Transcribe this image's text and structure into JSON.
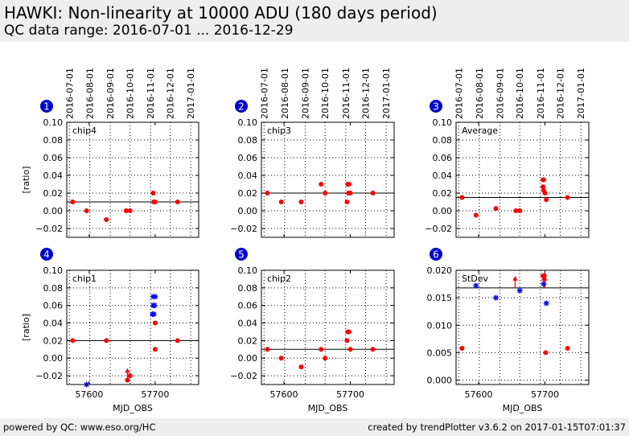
{
  "header": {
    "title": "HAWKI: Non-linearity at 10000 ADU (180 days period)",
    "subtitle": "QC data range: 2016-07-01 ... 2016-12-29"
  },
  "footer": {
    "left": "powered by QC: www.eso.org/HC",
    "right": "created by trendPlotter v3.6.2 on 2017-01-15T07:01:37"
  },
  "colors": {
    "points": "#ff0000",
    "outliers": "#0000ff",
    "badge": "#0000cc",
    "reference": "#000000"
  },
  "chart_data": [
    {
      "type": "scatter",
      "number": "1",
      "label": "chip4",
      "xlabel": "",
      "ylabel": "[ratio]",
      "xlim": [
        57566,
        57766
      ],
      "ylim": [
        -0.03,
        0.1
      ],
      "x_ticks": [
        57600,
        57700
      ],
      "x_tick_labels": [
        "",
        ""
      ],
      "y_ticks": [
        -0.02,
        0.0,
        0.02,
        0.04,
        0.06,
        0.08,
        0.1
      ],
      "y_tick_labels": [
        "−0.02",
        "0.00",
        "0.02",
        "0.04",
        "0.06",
        "0.08",
        "0.10"
      ],
      "date_ticks": [
        "2016-07-01",
        "2016-08-01",
        "2016-09-01",
        "2016-10-01",
        "2016-11-01",
        "2016-12-01",
        "2017-01-01"
      ],
      "date_tick_mjd": [
        57570,
        57601,
        57632,
        57662,
        57693,
        57723,
        57754
      ],
      "reference_line": 0.01,
      "points": [
        {
          "x": 57575,
          "y": 0.01
        },
        {
          "x": 57596,
          "y": 0.0
        },
        {
          "x": 57626,
          "y": -0.01
        },
        {
          "x": 57656,
          "y": 0.0
        },
        {
          "x": 57662,
          "y": 0.0
        },
        {
          "x": 57697,
          "y": 0.02
        },
        {
          "x": 57698,
          "y": 0.01
        },
        {
          "x": 57700,
          "y": 0.01
        },
        {
          "x": 57734,
          "y": 0.01
        }
      ],
      "outliers": [],
      "arrows": []
    },
    {
      "type": "scatter",
      "number": "2",
      "label": "chip3",
      "xlabel": "",
      "ylabel": "",
      "xlim": [
        57566,
        57766
      ],
      "ylim": [
        -0.03,
        0.1
      ],
      "x_ticks": [
        57600,
        57700
      ],
      "x_tick_labels": [
        "",
        ""
      ],
      "y_ticks": [
        -0.02,
        0.0,
        0.02,
        0.04,
        0.06,
        0.08,
        0.1
      ],
      "y_tick_labels": [
        "−0.02",
        "0.00",
        "0.02",
        "0.04",
        "0.06",
        "0.08",
        "0.10"
      ],
      "date_ticks": [
        "2016-07-01",
        "2016-08-01",
        "2016-09-01",
        "2016-10-01",
        "2016-11-01",
        "2016-12-01",
        "2017-01-01"
      ],
      "date_tick_mjd": [
        57570,
        57601,
        57632,
        57662,
        57693,
        57723,
        57754
      ],
      "reference_line": 0.02,
      "points": [
        {
          "x": 57575,
          "y": 0.02
        },
        {
          "x": 57596,
          "y": 0.01
        },
        {
          "x": 57626,
          "y": 0.01
        },
        {
          "x": 57656,
          "y": 0.03
        },
        {
          "x": 57662,
          "y": 0.02
        },
        {
          "x": 57695,
          "y": 0.01
        },
        {
          "x": 57696,
          "y": 0.03
        },
        {
          "x": 57698,
          "y": 0.03
        },
        {
          "x": 57697,
          "y": 0.02
        },
        {
          "x": 57700,
          "y": 0.02
        },
        {
          "x": 57734,
          "y": 0.02
        }
      ],
      "outliers": [],
      "arrows": []
    },
    {
      "type": "scatter",
      "number": "3",
      "label": "Average",
      "xlabel": "",
      "ylabel": "",
      "xlim": [
        57566,
        57766
      ],
      "ylim": [
        -0.03,
        0.1
      ],
      "x_ticks": [
        57600,
        57700
      ],
      "x_tick_labels": [
        "",
        ""
      ],
      "y_ticks": [
        -0.02,
        0.0,
        0.02,
        0.04,
        0.06,
        0.08,
        0.1
      ],
      "y_tick_labels": [
        "−0.02",
        "0.00",
        "0.02",
        "0.04",
        "0.06",
        "0.08",
        "0.10"
      ],
      "date_ticks": [
        "2016-07-01",
        "2016-08-01",
        "2016-09-01",
        "2016-10-01",
        "2016-11-01",
        "2016-12-01",
        "2017-01-01"
      ],
      "date_tick_mjd": [
        57570,
        57601,
        57632,
        57662,
        57693,
        57723,
        57754
      ],
      "reference_line": 0.015,
      "points": [
        {
          "x": 57575,
          "y": 0.015
        },
        {
          "x": 57596,
          "y": -0.005
        },
        {
          "x": 57626,
          "y": 0.0025
        },
        {
          "x": 57656,
          "y": 0.0
        },
        {
          "x": 57662,
          "y": 0.0
        },
        {
          "x": 57697,
          "y": 0.035
        },
        {
          "x": 57698,
          "y": 0.035
        },
        {
          "x": 57697,
          "y": 0.027
        },
        {
          "x": 57698,
          "y": 0.023
        },
        {
          "x": 57700,
          "y": 0.02
        },
        {
          "x": 57702,
          "y": 0.0125
        },
        {
          "x": 57734,
          "y": 0.015
        }
      ],
      "outliers": [],
      "arrows": []
    },
    {
      "type": "scatter",
      "number": "4",
      "label": "chip1",
      "xlabel": "MJD_OBS",
      "ylabel": "[ratio]",
      "xlim": [
        57566,
        57766
      ],
      "ylim": [
        -0.03,
        0.1
      ],
      "x_ticks": [
        57600,
        57700
      ],
      "x_tick_labels": [
        "57600",
        "57700"
      ],
      "y_ticks": [
        -0.02,
        0.0,
        0.02,
        0.04,
        0.06,
        0.08,
        0.1
      ],
      "y_tick_labels": [
        "−0.02",
        "0.00",
        "0.02",
        "0.04",
        "0.06",
        "0.08",
        "0.10"
      ],
      "date_ticks": [],
      "date_tick_mjd": [],
      "reference_line": 0.02,
      "points": [
        {
          "x": 57575,
          "y": 0.02
        },
        {
          "x": 57626,
          "y": 0.02
        },
        {
          "x": 57658,
          "y": -0.025
        },
        {
          "x": 57662,
          "y": -0.02
        },
        {
          "x": 57700,
          "y": 0.04
        },
        {
          "x": 57700,
          "y": 0.01
        },
        {
          "x": 57734,
          "y": 0.02
        }
      ],
      "outliers": [
        {
          "x": 57596,
          "y": -0.03
        },
        {
          "x": 57697,
          "y": 0.07
        },
        {
          "x": 57700,
          "y": 0.07
        },
        {
          "x": 57697,
          "y": 0.06
        },
        {
          "x": 57699,
          "y": 0.06
        },
        {
          "x": 57696,
          "y": 0.05
        },
        {
          "x": 57698,
          "y": 0.05
        }
      ],
      "arrows": [
        {
          "x": 57658,
          "y": -0.025,
          "dir": "up"
        }
      ]
    },
    {
      "type": "scatter",
      "number": "5",
      "label": "chip2",
      "xlabel": "MJD_OBS",
      "ylabel": "",
      "xlim": [
        57566,
        57766
      ],
      "ylim": [
        -0.03,
        0.1
      ],
      "x_ticks": [
        57600,
        57700
      ],
      "x_tick_labels": [
        "57600",
        "57700"
      ],
      "y_ticks": [
        -0.02,
        0.0,
        0.02,
        0.04,
        0.06,
        0.08,
        0.1
      ],
      "y_tick_labels": [
        "−0.02",
        "0.00",
        "0.02",
        "0.04",
        "0.06",
        "0.08",
        "0.10"
      ],
      "date_ticks": [],
      "date_tick_mjd": [],
      "reference_line": 0.01,
      "points": [
        {
          "x": 57575,
          "y": 0.01
        },
        {
          "x": 57596,
          "y": 0.0
        },
        {
          "x": 57626,
          "y": -0.01
        },
        {
          "x": 57656,
          "y": 0.01
        },
        {
          "x": 57662,
          "y": 0.0
        },
        {
          "x": 57695,
          "y": 0.02
        },
        {
          "x": 57696,
          "y": 0.03
        },
        {
          "x": 57698,
          "y": 0.03
        },
        {
          "x": 57700,
          "y": 0.01
        },
        {
          "x": 57734,
          "y": 0.01
        }
      ],
      "outliers": [],
      "arrows": []
    },
    {
      "type": "scatter",
      "number": "6",
      "label": "StDev",
      "xlabel": "MJD_OBS",
      "ylabel": "",
      "xlim": [
        57566,
        57766
      ],
      "ylim": [
        -0.0008,
        0.02
      ],
      "x_ticks": [
        57600,
        57700
      ],
      "x_tick_labels": [
        "57600",
        "57700"
      ],
      "y_ticks": [
        0.0,
        0.005,
        0.01,
        0.015,
        0.02
      ],
      "y_tick_labels": [
        "0.000",
        "0.005",
        "0.010",
        "0.015",
        "0.020"
      ],
      "date_ticks": [],
      "date_tick_mjd": [],
      "reference_line": 0.0168,
      "points": [
        {
          "x": 57575,
          "y": 0.0058
        },
        {
          "x": 57697,
          "y": 0.019
        },
        {
          "x": 57699,
          "y": 0.019
        },
        {
          "x": 57701,
          "y": 0.005
        },
        {
          "x": 57734,
          "y": 0.0058
        }
      ],
      "outliers": [
        {
          "x": 57596,
          "y": 0.0172
        },
        {
          "x": 57626,
          "y": 0.015
        },
        {
          "x": 57662,
          "y": 0.0163
        },
        {
          "x": 57698,
          "y": 0.0175
        },
        {
          "x": 57702,
          "y": 0.014
        }
      ],
      "arrows": [
        {
          "x": 57655,
          "y": 0.0168,
          "dir": "up"
        },
        {
          "x": 57698,
          "y": 0.0168,
          "dir": "up"
        },
        {
          "x": 57700,
          "y": 0.0168,
          "dir": "up"
        }
      ]
    }
  ]
}
